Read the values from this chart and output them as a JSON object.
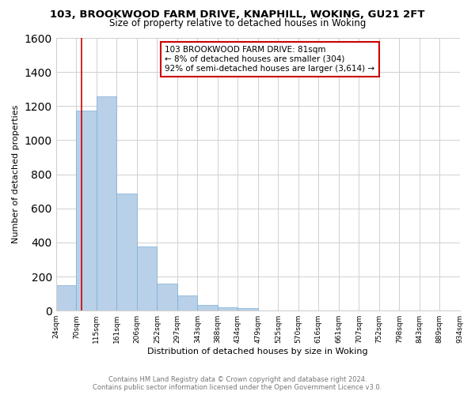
{
  "title": "103, BROOKWOOD FARM DRIVE, KNAPHILL, WOKING, GU21 2FT",
  "subtitle": "Size of property relative to detached houses in Woking",
  "xlabel": "Distribution of detached houses by size in Woking",
  "ylabel": "Number of detached properties",
  "bar_values": [
    150,
    1175,
    1255,
    685,
    375,
    160,
    90,
    35,
    20,
    15,
    0,
    0,
    0,
    0,
    0,
    0,
    0,
    0,
    0,
    0
  ],
  "bar_color": "#b8d0e8",
  "bar_edge_color": "#7bafd4",
  "property_line_x": 81,
  "property_line_color": "#cc0000",
  "bin_edges": [
    24,
    70,
    115,
    161,
    206,
    252,
    297,
    343,
    388,
    434,
    479,
    525,
    570,
    616,
    661,
    707,
    752,
    798,
    843,
    889,
    934
  ],
  "bar_labels": [
    "24sqm",
    "70sqm",
    "115sqm",
    "161sqm",
    "206sqm",
    "252sqm",
    "297sqm",
    "343sqm",
    "388sqm",
    "434sqm",
    "479sqm",
    "525sqm",
    "570sqm",
    "616sqm",
    "661sqm",
    "707sqm",
    "752sqm",
    "798sqm",
    "843sqm",
    "889sqm",
    "934sqm"
  ],
  "annotation_line1": "103 BROOKWOOD FARM DRIVE: 81sqm",
  "annotation_line2": "← 8% of detached houses are smaller (304)",
  "annotation_line3": "92% of semi-detached houses are larger (3,614) →",
  "annotation_box_color": "#ffffff",
  "annotation_box_edge": "#cc0000",
  "ylim": [
    0,
    1600
  ],
  "yticks": [
    0,
    200,
    400,
    600,
    800,
    1000,
    1200,
    1400,
    1600
  ],
  "footer_text": "Contains HM Land Registry data © Crown copyright and database right 2024.\nContains public sector information licensed under the Open Government Licence v3.0.",
  "bg_color": "#ffffff",
  "grid_color": "#d0d0d0"
}
